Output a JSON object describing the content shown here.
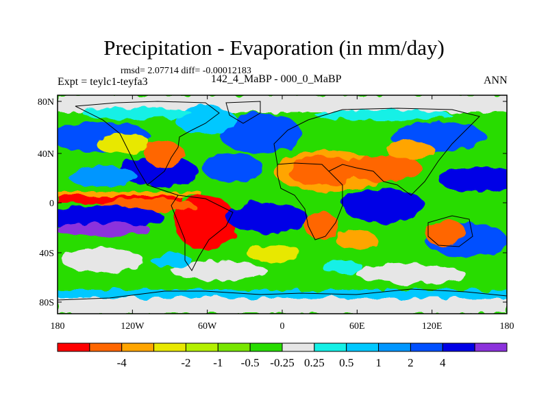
{
  "title": "Precipitation - Evaporation (in mm/day)",
  "stats": "rmsd= 2.07714 diff= -0.00012183",
  "experiment": "Expt = teylc1-teyfa3",
  "period": "142_4_MaBP - 000_0_MaBP",
  "season": "ANN",
  "lat_ticks": [
    "80N",
    "40N",
    "0",
    "40S",
    "80S"
  ],
  "lon_ticks": [
    "180",
    "120W",
    "60W",
    "0",
    "60E",
    "120E",
    "180"
  ],
  "colorbar": {
    "colors": [
      "#ff0000",
      "#ff6600",
      "#ffa500",
      "#e8e800",
      "#b4f000",
      "#78e600",
      "#28dc00",
      "#e6e6e6",
      "#14f0e6",
      "#00c8ff",
      "#0096ff",
      "#0050ff",
      "#0000e6",
      "#8c32dc"
    ],
    "labels": [
      "-4",
      "-2",
      "-1",
      "-0.5",
      "-0.25",
      "0.25",
      "0.5",
      "1",
      "2",
      "4"
    ]
  }
}
